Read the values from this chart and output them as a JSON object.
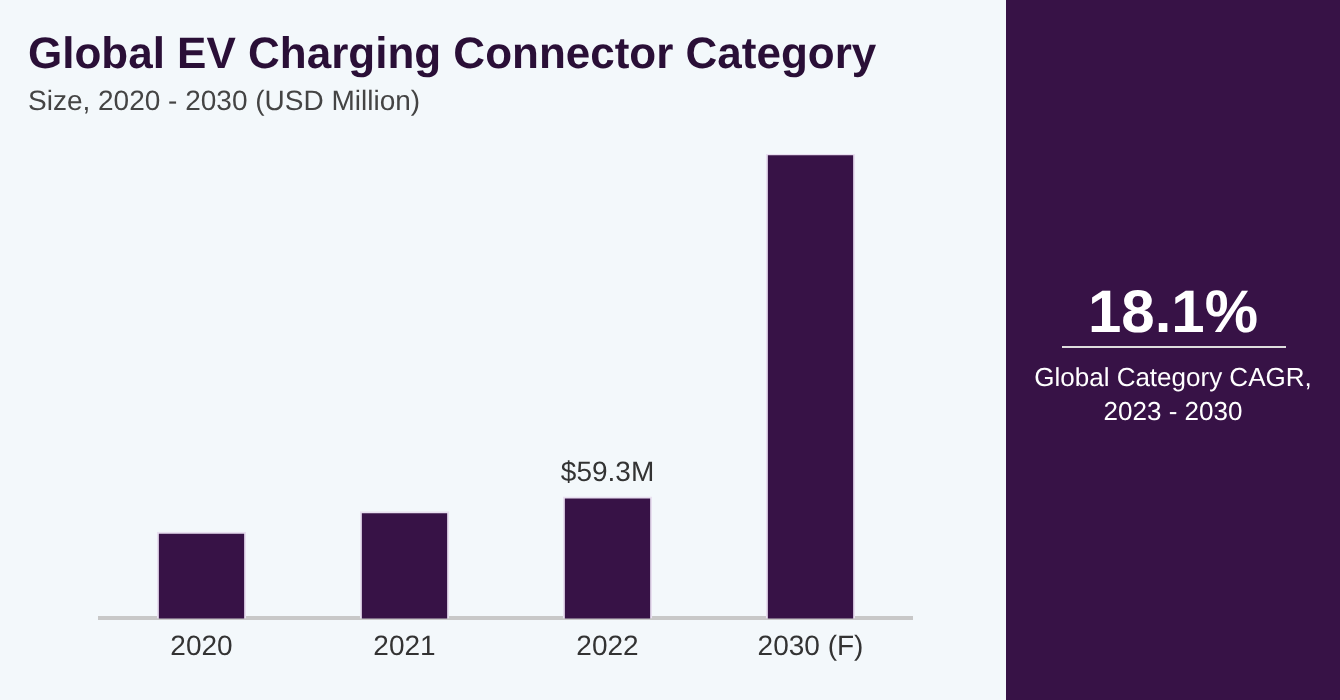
{
  "chart_data": {
    "type": "bar",
    "title": "Global EV Charging Connector Category",
    "subtitle": "Size, 2020 - 2030 (USD Million)",
    "categories": [
      "2020",
      "2021",
      "2022",
      "2030 (F)"
    ],
    "values": [
      42,
      52,
      59.3,
      227
    ],
    "value_labels": [
      null,
      null,
      "$59.3M",
      null
    ],
    "color": "#371246",
    "annotations": [
      "18.1%",
      "Global Category CAGR, 2023 - 2030"
    ],
    "grid": false,
    "legend": false
  }
}
